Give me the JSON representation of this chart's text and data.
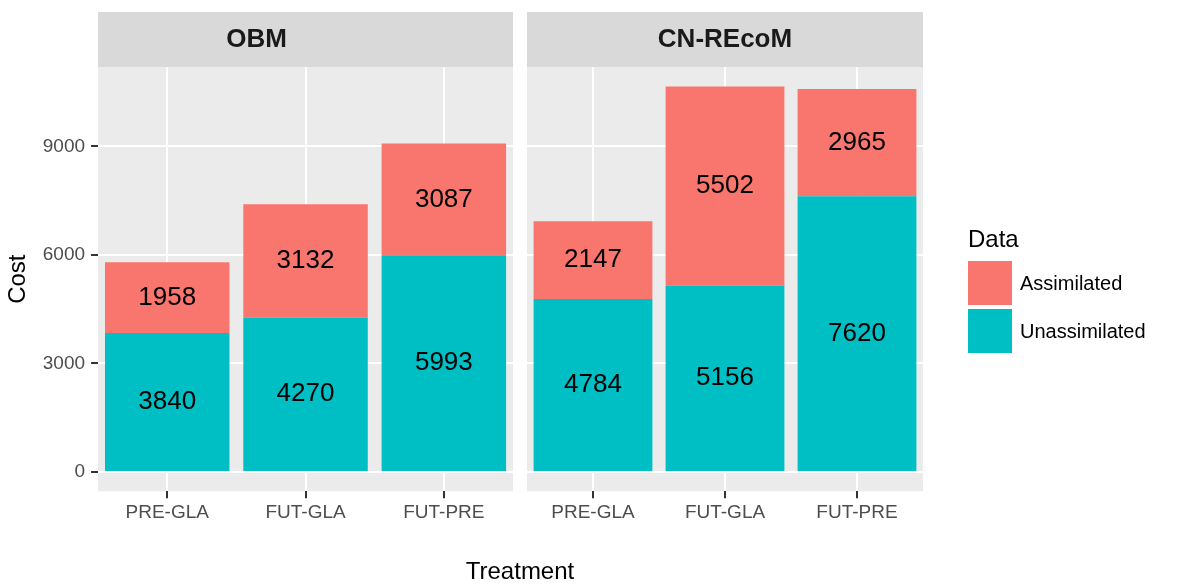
{
  "chart_data": [
    {
      "type": "bar",
      "title": "OBM",
      "xlabel": "Treatment",
      "ylabel": "Cost",
      "categories": [
        "PRE-GLA",
        "FUT-GLA",
        "FUT-PRE"
      ],
      "stacked": true,
      "data_labels": true,
      "grid": true,
      "ylim": [
        -533,
        11191
      ],
      "yticks": [
        0,
        3000,
        6000,
        9000
      ],
      "legend": "right",
      "legend_title": "Data",
      "series": [
        {
          "name": "Unassimilated",
          "color": "#00bfc4",
          "values": [
            3840,
            4270,
            5993
          ]
        },
        {
          "name": "Assimilated",
          "color": "#f8766d",
          "values": [
            1958,
            3132,
            3087
          ]
        }
      ]
    },
    {
      "type": "bar",
      "title": "CN-REcoM",
      "categories": [
        "PRE-GLA",
        "FUT-GLA",
        "FUT-PRE"
      ],
      "stacked": true,
      "data_labels": true,
      "grid": true,
      "ylim": [
        -533,
        11191
      ],
      "yticks": [
        0,
        3000,
        6000,
        9000
      ],
      "tick_labels": "x",
      "series": [
        {
          "color": "#00bfc4",
          "values": [
            4784,
            5156,
            7620
          ]
        },
        {
          "color": "#f8766d",
          "values": [
            2147,
            5502,
            2965
          ]
        }
      ]
    }
  ]
}
